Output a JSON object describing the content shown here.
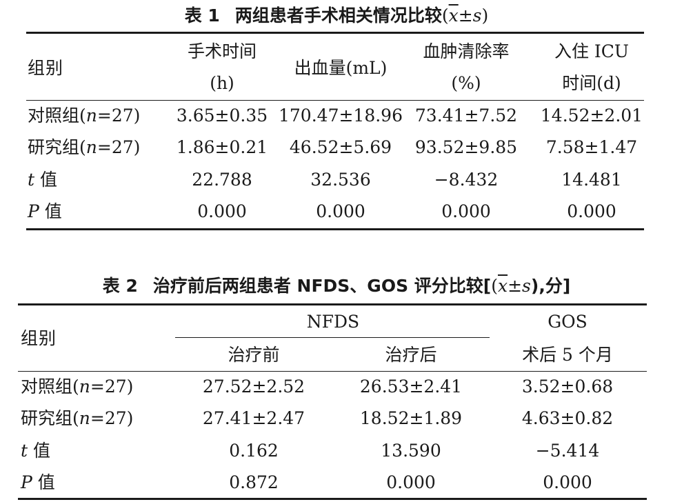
{
  "table1": {
    "number": "表 1",
    "title": "两组患者手术相关情况比较",
    "stat_open": "(",
    "stat_x": "x",
    "stat_pm": "±",
    "stat_s": "s",
    "stat_close": ")",
    "header": {
      "group": "组别",
      "col1_line1": "手术时间",
      "col1_line2": "(h)",
      "col2": "出血量(mL)",
      "col3_line1": "血肿清除率",
      "col3_line2": "(%)",
      "col4_line1": "入住 ICU",
      "col4_line2": "时间(d)"
    },
    "rows": [
      {
        "label_pre": "对照组(",
        "label_n": "n",
        "label_post": "=27)",
        "values": [
          "3.65±0.35",
          "170.47±18.96",
          "73.41±7.52",
          "14.52±2.01"
        ]
      },
      {
        "label_pre": "研究组(",
        "label_n": "n",
        "label_post": "=27)",
        "values": [
          "1.86±0.21",
          "46.52±5.69",
          "93.52±9.85",
          "7.58±1.47"
        ]
      },
      {
        "label_sym": "t",
        "label_post": " 值",
        "values": [
          "22.788",
          "32.536",
          "−8.432",
          "14.481"
        ]
      },
      {
        "label_sym": "P",
        "label_post": " 值",
        "values": [
          "0.000",
          "0.000",
          "0.000",
          "0.000"
        ]
      }
    ]
  },
  "table2": {
    "number": "表 2",
    "title": "治疗前后两组患者 NFDS、GOS 评分比较[",
    "stat_open": "(",
    "stat_x": "x",
    "stat_pm": "±",
    "stat_s": "s",
    "stat_close": "),分]",
    "header": {
      "group": "组别",
      "nfds": "NFDS",
      "gos": "GOS",
      "before": "治疗前",
      "after": "治疗后",
      "gos_sub": "术后 5 个月"
    },
    "rows": [
      {
        "label_pre": "对照组(",
        "label_n": "n",
        "label_post": "=27)",
        "values": [
          "27.52±2.52",
          "26.53±2.41",
          "3.52±0.68"
        ]
      },
      {
        "label_pre": "研究组(",
        "label_n": "n",
        "label_post": "=27)",
        "values": [
          "27.41±2.47",
          "18.52±1.89",
          "4.63±0.82"
        ]
      },
      {
        "label_sym": "t",
        "label_post": " 值",
        "values": [
          "0.162",
          "13.590",
          "−5.414"
        ]
      },
      {
        "label_sym": "P",
        "label_post": " 值",
        "values": [
          "0.872",
          "0.000",
          "0.000"
        ]
      }
    ]
  }
}
